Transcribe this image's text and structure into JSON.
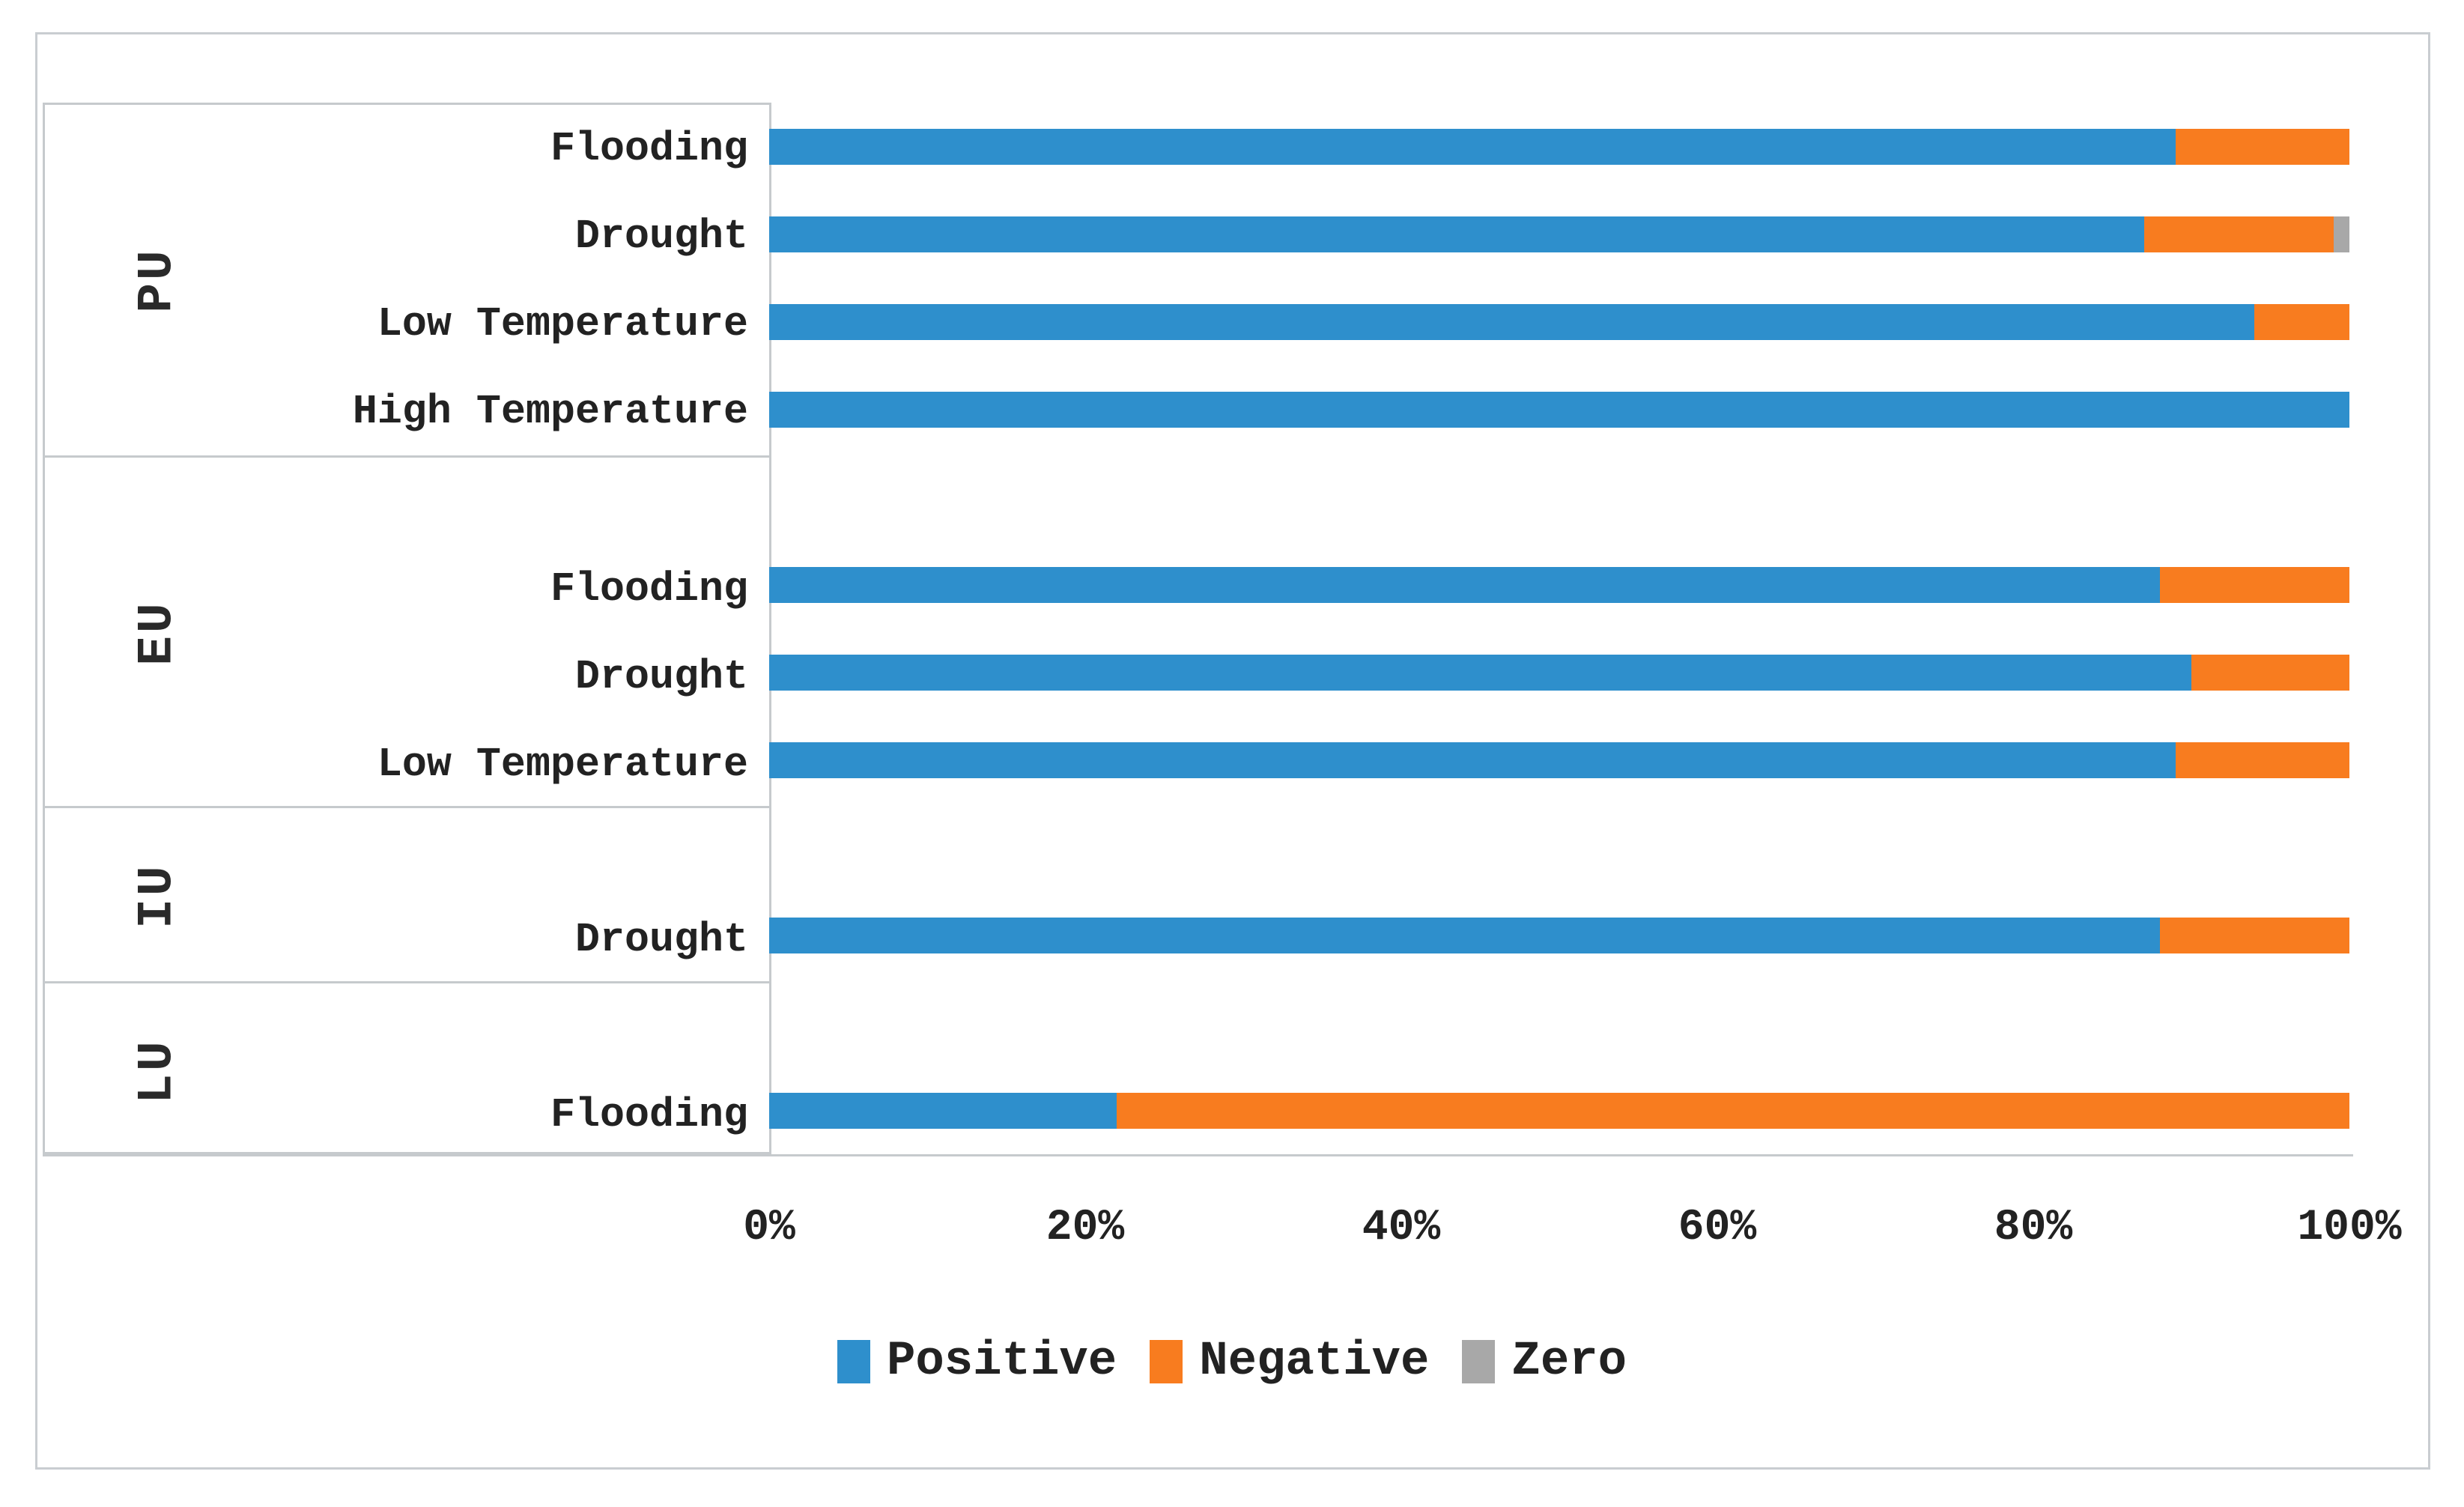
{
  "chart_data": {
    "type": "bar",
    "orientation": "horizontal",
    "stacked": true,
    "unit": "percent",
    "title": "",
    "xlabel": "",
    "ylabel": "",
    "xlim": [
      0,
      100
    ],
    "grid": false,
    "legend_position": "bottom",
    "x_ticks": [
      "0%",
      "20%",
      "40%",
      "60%",
      "80%",
      "100%"
    ],
    "series_colors": {
      "positive": "#2e8fcc",
      "negative": "#f87c1f",
      "zero": "#a8a8a8"
    },
    "legend": [
      {
        "label": "Positive",
        "color": "#2e8fcc"
      },
      {
        "label": "Negative",
        "color": "#f87c1f"
      },
      {
        "label": "Zero",
        "color": "#a8a8a8"
      }
    ],
    "groups": [
      {
        "name": "PU",
        "rows": [
          {
            "label": "Flooding",
            "positive": 89,
            "negative": 11,
            "zero": 0
          },
          {
            "label": "Drought",
            "positive": 87,
            "negative": 12,
            "zero": 1
          },
          {
            "label": "Low Temperature",
            "positive": 94,
            "negative": 6,
            "zero": 0
          },
          {
            "label": "High Temperature",
            "positive": 100,
            "negative": 0,
            "zero": 0
          }
        ]
      },
      {
        "name": "EU",
        "rows": [
          {
            "label": "Flooding",
            "positive": 88,
            "negative": 12,
            "zero": 0
          },
          {
            "label": "Drought",
            "positive": 90,
            "negative": 10,
            "zero": 0
          },
          {
            "label": "Low Temperature",
            "positive": 89,
            "negative": 11,
            "zero": 0
          }
        ]
      },
      {
        "name": "IU",
        "rows": [
          {
            "label": "Drought",
            "positive": 88,
            "negative": 12,
            "zero": 0
          }
        ]
      },
      {
        "name": "LU",
        "rows": [
          {
            "label": "Flooding",
            "positive": 22,
            "negative": 78,
            "zero": 0
          }
        ]
      }
    ]
  }
}
